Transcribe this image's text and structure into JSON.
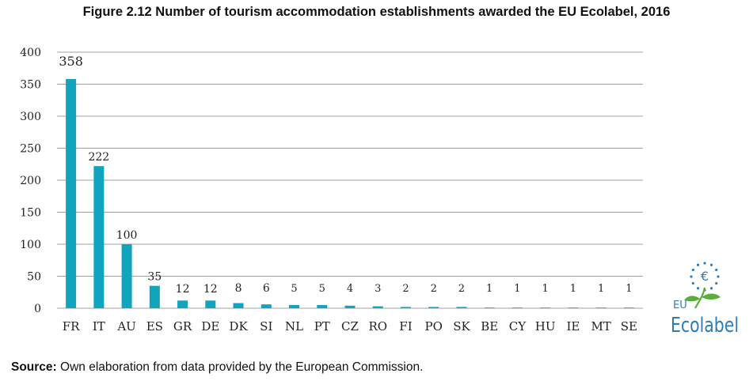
{
  "title": "Figure 2.12 Number of tourism accommodation establishments awarded the EU Ecolabel, 2016",
  "source": {
    "label": "Source:",
    "text": " Own elaboration from data provided by the European Commission."
  },
  "logo": {
    "eu": "EU",
    "name": "Ecolabel",
    "flower_symbol": "€"
  },
  "colors": {
    "bar": "#12a4bd",
    "grid": "#a0a0a0",
    "logo_blue": "#2e7db8",
    "logo_green": "#5aad3a"
  },
  "chart_data": {
    "type": "bar",
    "categories": [
      "FR",
      "IT",
      "AU",
      "ES",
      "GR",
      "DE",
      "DK",
      "SI",
      "NL",
      "PT",
      "CZ",
      "RO",
      "FI",
      "PO",
      "SK",
      "BE",
      "CY",
      "HU",
      "IE",
      "MT",
      "SE"
    ],
    "values": [
      358,
      222,
      100,
      35,
      12,
      12,
      8,
      6,
      5,
      5,
      4,
      3,
      2,
      2,
      2,
      1,
      1,
      1,
      1,
      1,
      1
    ],
    "ylim": [
      0,
      400
    ],
    "yticks": [
      0,
      50,
      100,
      150,
      200,
      250,
      300,
      350,
      400
    ],
    "grid": true,
    "legend": "none"
  }
}
